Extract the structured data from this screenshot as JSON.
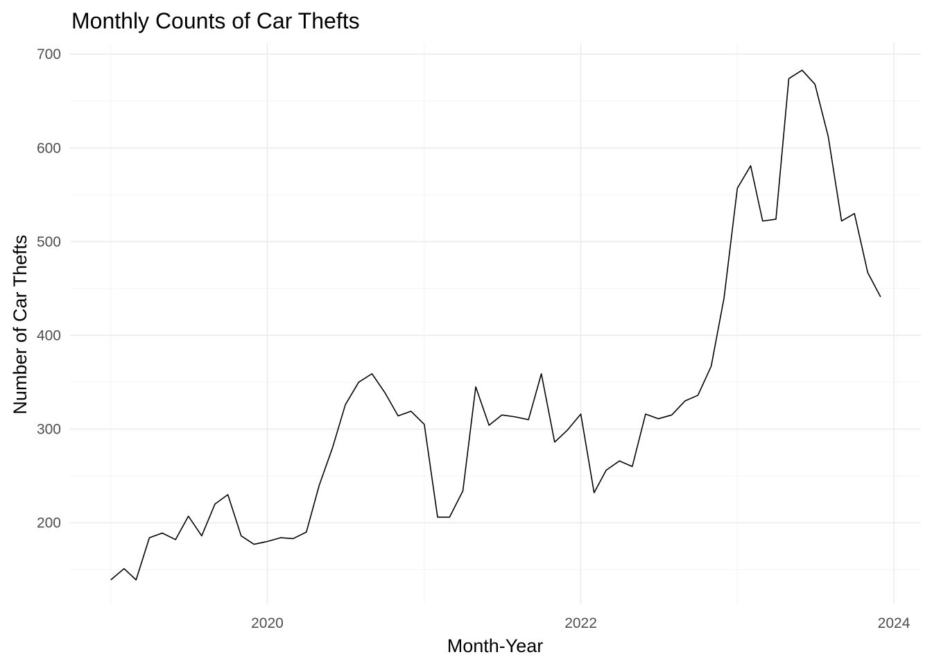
{
  "chart_data": {
    "type": "line",
    "title": "Monthly Counts of Car Thefts",
    "xlabel": "Month-Year",
    "ylabel": "Number of Car Thefts",
    "x_type": "date",
    "xlim": [
      "2018-09-28",
      "2024-03-04"
    ],
    "ylim": [
      113,
      712
    ],
    "x_ticks": [
      {
        "label": "2020",
        "value": "2020-01-01"
      },
      {
        "label": "2022",
        "value": "2022-01-01"
      },
      {
        "label": "2024",
        "value": "2024-01-01"
      }
    ],
    "x_minor_ticks": [
      "2019-01-01",
      "2021-01-01",
      "2023-01-01"
    ],
    "y_ticks": [
      200,
      300,
      400,
      500,
      600,
      700
    ],
    "y_minor_ticks": [
      150,
      250,
      350,
      450,
      550,
      650
    ],
    "grid": true,
    "legend": "none",
    "series": [
      {
        "color": "#000000",
        "x": [
          "2019-01-01",
          "2019-02-01",
          "2019-03-01",
          "2019-04-01",
          "2019-05-01",
          "2019-06-01",
          "2019-07-01",
          "2019-08-01",
          "2019-09-01",
          "2019-10-01",
          "2019-11-01",
          "2019-12-01",
          "2020-01-01",
          "2020-02-01",
          "2020-03-01",
          "2020-04-01",
          "2020-05-01",
          "2020-06-01",
          "2020-07-01",
          "2020-08-01",
          "2020-09-01",
          "2020-10-01",
          "2020-11-01",
          "2020-12-01",
          "2021-01-01",
          "2021-02-01",
          "2021-03-01",
          "2021-04-01",
          "2021-05-01",
          "2021-06-01",
          "2021-07-01",
          "2021-08-01",
          "2021-09-01",
          "2021-10-01",
          "2021-11-01",
          "2021-12-01",
          "2022-01-01",
          "2022-02-01",
          "2022-03-01",
          "2022-04-01",
          "2022-05-01",
          "2022-06-01",
          "2022-07-01",
          "2022-08-01",
          "2022-09-01",
          "2022-10-01",
          "2022-11-01",
          "2022-12-01",
          "2023-01-01",
          "2023-02-01",
          "2023-03-01",
          "2023-04-01",
          "2023-05-01",
          "2023-06-01",
          "2023-07-01",
          "2023-08-01",
          "2023-09-01",
          "2023-10-01",
          "2023-11-01",
          "2023-12-01"
        ],
        "values": [
          139,
          151,
          139,
          184,
          189,
          182,
          207,
          186,
          220,
          230,
          186,
          177,
          180,
          184,
          183,
          190,
          240,
          280,
          326,
          350,
          359,
          339,
          314,
          319,
          305,
          206,
          206,
          234,
          345,
          304,
          315,
          313,
          310,
          359,
          286,
          299,
          316,
          232,
          256,
          266,
          260,
          316,
          311,
          315,
          330,
          336,
          367,
          440,
          557,
          581,
          522,
          524,
          674,
          683,
          668,
          612,
          522,
          530,
          467,
          441
        ]
      }
    ]
  }
}
